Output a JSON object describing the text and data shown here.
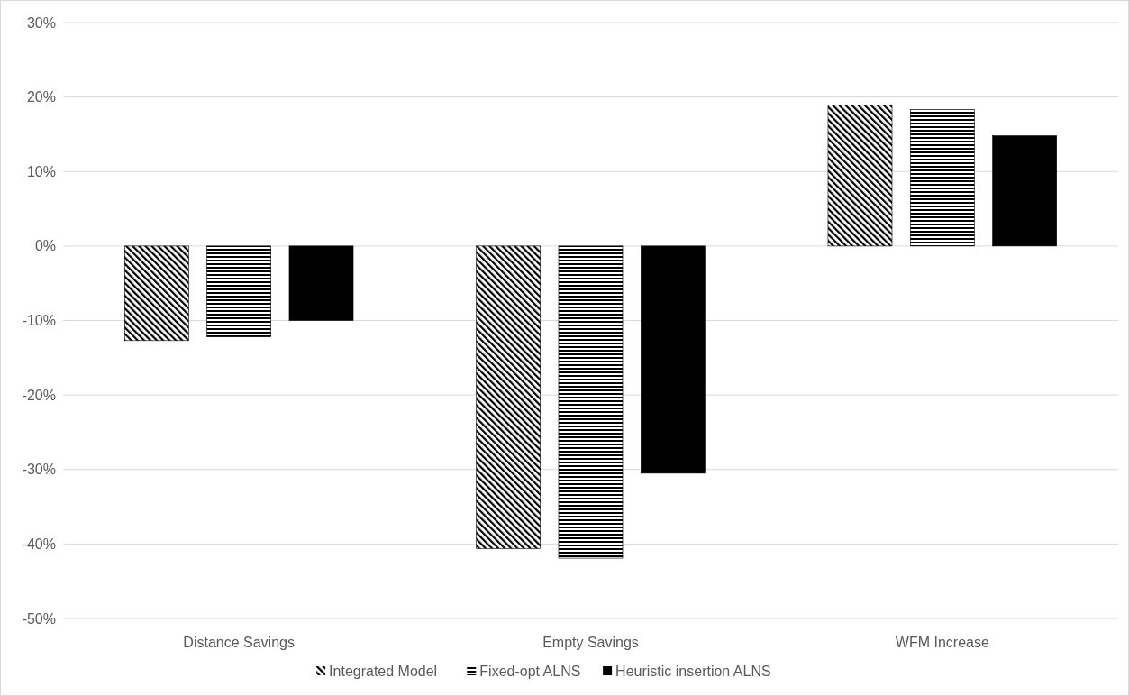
{
  "chart_data": {
    "type": "bar",
    "categories": [
      "Distance Savings",
      "Empty Savings",
      "WFM Increase"
    ],
    "series": [
      {
        "name": "Integrated Model",
        "color": "#000000",
        "values": [
          -12.7,
          -40.6,
          18.9
        ]
      },
      {
        "name": "Fixed-opt ALNS",
        "color": "#000000",
        "values": [
          -12.2,
          -41.9,
          18.3
        ]
      },
      {
        "name": "Heuristic insertion ALNS",
        "color": "#000000",
        "values": [
          -10.0,
          -30.5,
          14.8
        ]
      }
    ],
    "ylim": [
      -50,
      30
    ],
    "yticks": [
      {
        "value": -50,
        "label": "-50%"
      },
      {
        "value": -40,
        "label": "-40%"
      },
      {
        "value": -30,
        "label": "-30%"
      },
      {
        "value": -20,
        "label": "-20%"
      },
      {
        "value": -10,
        "label": "-10%"
      },
      {
        "value": 0,
        "label": "0%"
      },
      {
        "value": 10,
        "label": "10%"
      },
      {
        "value": 20,
        "label": "20%"
      },
      {
        "value": 30,
        "label": "30%"
      }
    ],
    "grid": "y",
    "legend": "bottom"
  }
}
